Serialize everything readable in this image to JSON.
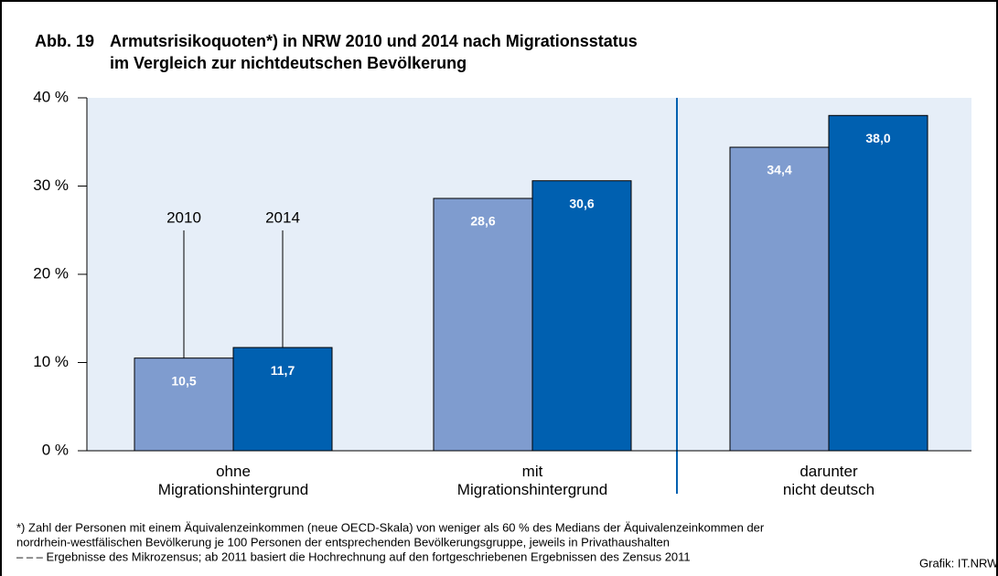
{
  "chart_data": {
    "type": "bar",
    "figure_label": "Abb. 19",
    "title": [
      "Armutsrisikoquoten*) in NRW 2010 und 2014 nach Migrationsstatus",
      "im Vergleich zur nichtdeutschen Bevölkerung"
    ],
    "categories": [
      "ohne\nMigrationshintergrund",
      "mit\nMigrationshintergrund",
      "darunter\nnicht deutsch"
    ],
    "series": [
      {
        "name": "2010",
        "color": "#7f9ccf",
        "values": [
          10.5,
          28.6,
          34.4
        ],
        "value_labels": [
          "10,5",
          "28,6",
          "34,4"
        ]
      },
      {
        "name": "2014",
        "color": "#0060b0",
        "values": [
          11.7,
          30.6,
          38.0
        ],
        "value_labels": [
          "11,7",
          "30,6",
          "38,0"
        ]
      }
    ],
    "ylim": [
      0,
      40
    ],
    "yticks": [
      {
        "value": 0,
        "label": "0 %"
      },
      {
        "value": 10,
        "label": "10 %"
      },
      {
        "value": 20,
        "label": "20 %"
      },
      {
        "value": 30,
        "label": "30 %"
      },
      {
        "value": 40,
        "label": "40 %"
      }
    ],
    "footnotes": [
      "*) Zahl der Personen mit einem Äquivalenzeinkommen (neue OECD-Skala) von weniger als 60 % des Medians der Äquivalenzeinkommen der",
      "nordrhein-westfälischen Bevölkerung je 100 Personen der entsprechenden Bevölkerungsgruppe, jeweils in Privathaushalten",
      "– – – Ergebnisse des Mikrozensus; ab 2011 basiert die Hochrechnung auf den fortgeschriebenen Ergebnissen des Zensus 2011"
    ],
    "source": "Grafik: IT.NRW"
  }
}
